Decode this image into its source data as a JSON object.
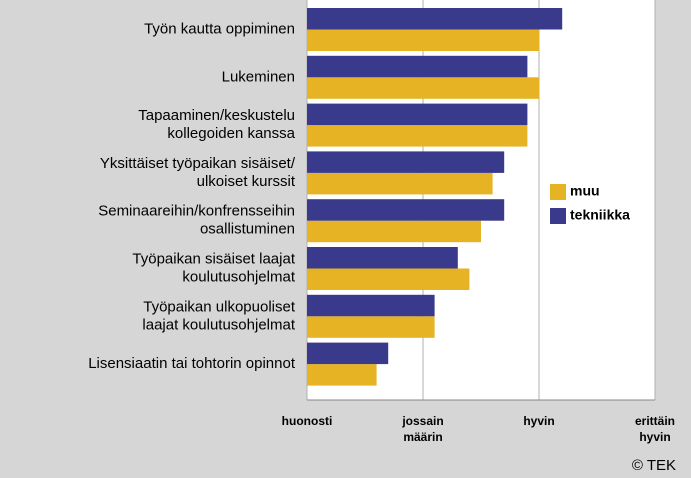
{
  "chart_data": {
    "type": "bar",
    "orientation": "horizontal",
    "categories": [
      "Työn kautta oppiminen",
      "Lukeminen",
      "Tapaaminen/keskustelu\nkollegoiden kanssa",
      "Yksittäiset työpaikan sisäiset/\nulkoiset kurssit",
      "Seminaareihin/konfrensseihin\nosallistuminen",
      "Työpaikan sisäiset laajat\nkoulutusohjelmat",
      "Työpaikan ulkopuoliset\nlaajat koulutusohjelmat",
      "Lisensiaatin tai tohtorin opinnot"
    ],
    "series": [
      {
        "name": "muu",
        "color": "#e5b323",
        "values": [
          3.0,
          3.0,
          2.9,
          2.6,
          2.5,
          2.4,
          2.1,
          1.6
        ]
      },
      {
        "name": "tekniikka",
        "color": "#3a3a8c",
        "values": [
          3.2,
          2.9,
          2.9,
          2.7,
          2.7,
          2.3,
          2.1,
          1.7
        ]
      }
    ],
    "xlim": [
      1,
      4
    ],
    "xticks": [
      {
        "value": 1,
        "label": "huonosti"
      },
      {
        "value": 2,
        "label": "jossain\nmäärin"
      },
      {
        "value": 3,
        "label": "hyvin"
      },
      {
        "value": 4,
        "label": "erittäin\nhyvin"
      }
    ],
    "grid": true,
    "legend": "right",
    "annotation": "© TEK"
  }
}
